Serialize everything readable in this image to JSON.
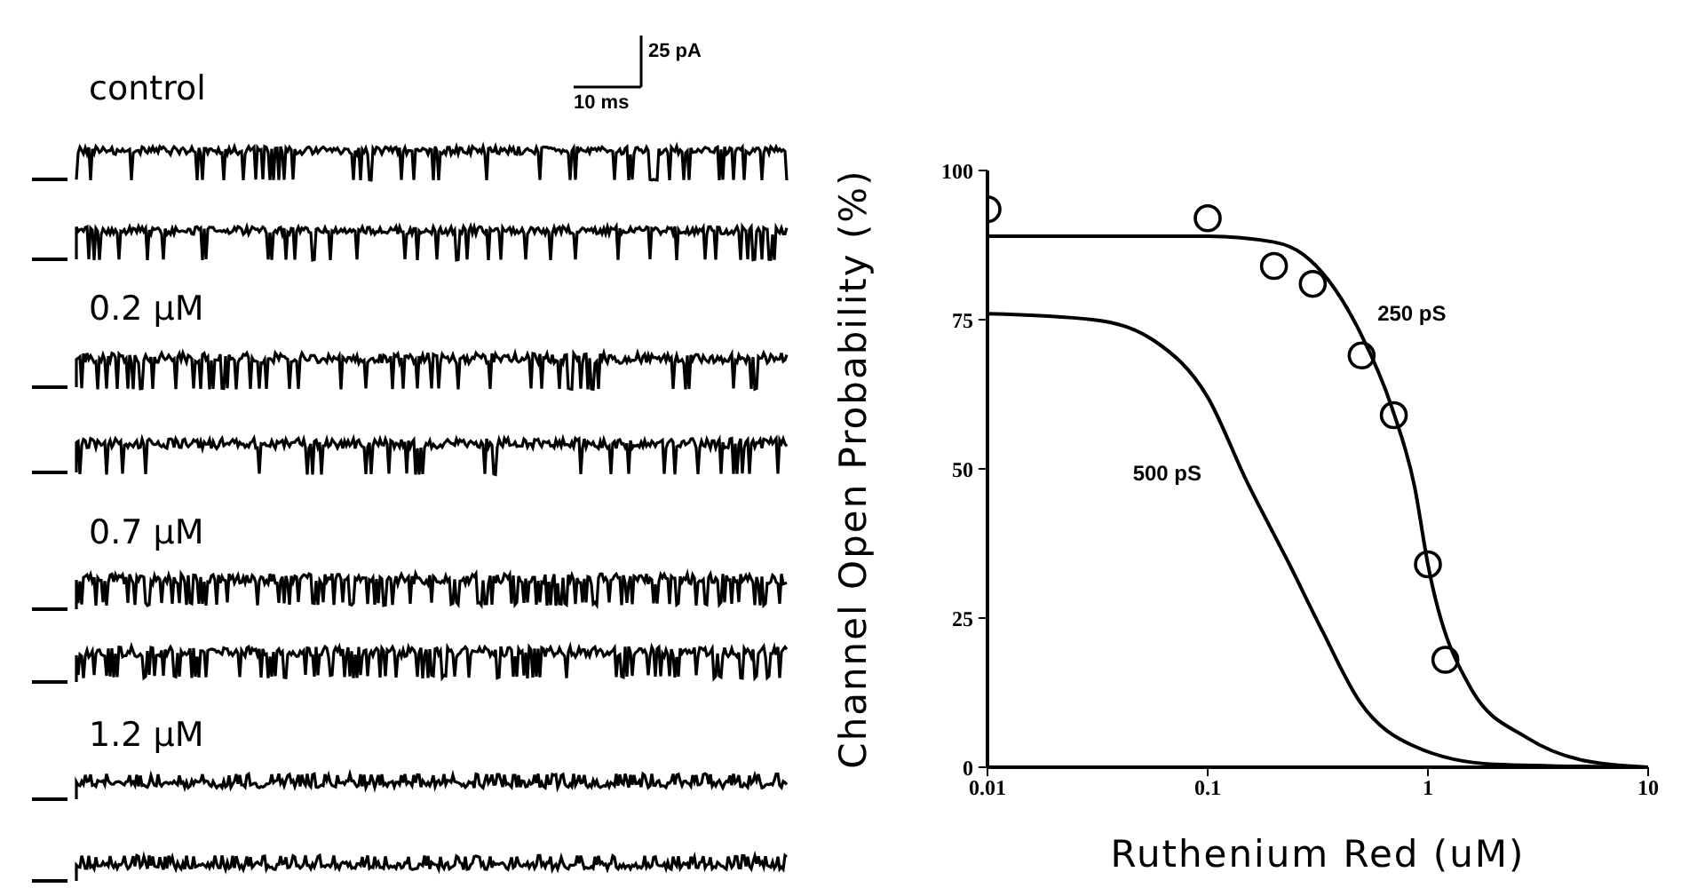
{
  "chart_data": [
    {
      "type": "other",
      "annotations": [
        "control",
        "0.2 μM",
        "0.7 μM",
        "1.2 μM",
        "25 pA",
        "10 ms"
      ]
    },
    {
      "type": "scatter",
      "xlabel": "Ruthenium Red (uM)",
      "ylabel": "Channel Open Probability (%)",
      "log": "x",
      "marker": "circle",
      "xlim": [
        0.01,
        10
      ],
      "xticks": [
        0.01,
        0.1,
        1,
        10
      ],
      "ylim": [
        0,
        100
      ],
      "yticks": [
        0,
        25,
        50,
        75,
        100
      ],
      "series": [
        {
          "type": "scatter",
          "color": "#000000",
          "x": [
            0.01,
            0.1,
            0.2,
            0.3,
            0.5,
            0.7,
            1.0,
            1.2
          ],
          "values": [
            93.5,
            92,
            84,
            81,
            69,
            59,
            34,
            18
          ]
        },
        {
          "type": "line",
          "name": "250 pS",
          "color": "#000000",
          "marker": "none",
          "x": [
            0.01,
            0.1,
            0.2,
            0.27,
            0.49,
            0.69,
            0.87,
            1.0,
            1.58,
            2.8,
            5,
            10
          ],
          "values": [
            89,
            89,
            88,
            86,
            73,
            60,
            47,
            34,
            13,
            5,
            1.2,
            0
          ]
        },
        {
          "type": "line",
          "name": "500 pS",
          "color": "#000000",
          "marker": "none",
          "x": [
            0.01,
            0.03,
            0.057,
            0.1,
            0.15,
            0.235,
            0.33,
            0.49,
            0.87,
            2,
            10
          ],
          "values": [
            76,
            75,
            71.5,
            62,
            48,
            34,
            23,
            11,
            3.5,
            0.5,
            0
          ]
        }
      ]
    }
  ]
}
